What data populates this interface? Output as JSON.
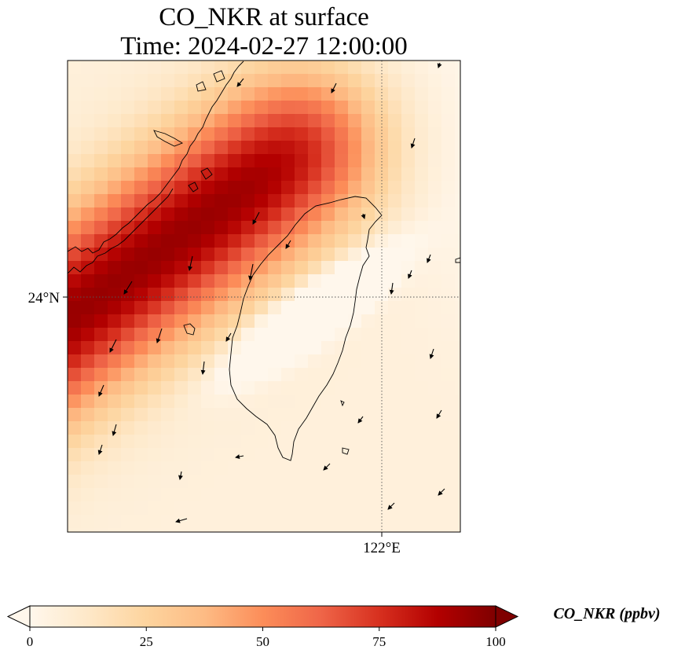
{
  "title": {
    "line1": "CO_NKR at surface",
    "line2": "Time: 2024-02-27 12:00:00"
  },
  "map": {
    "lat_tick_label": "24°N",
    "lon_tick_label": "122°E",
    "coastline_color": "#000000",
    "gridline_style": "dotted"
  },
  "colorbar": {
    "label": "CO_NKR (ppbv)",
    "ticks": [
      "0",
      "25",
      "50",
      "75",
      "100"
    ],
    "min": 0,
    "max": 100,
    "extend": "both",
    "colormap": "OrRd",
    "colors": [
      "#fff7ec",
      "#fee8c8",
      "#fdd49e",
      "#fdbb84",
      "#fc8d59",
      "#ef6548",
      "#d7301f",
      "#b30000",
      "#7f0000"
    ]
  }
}
